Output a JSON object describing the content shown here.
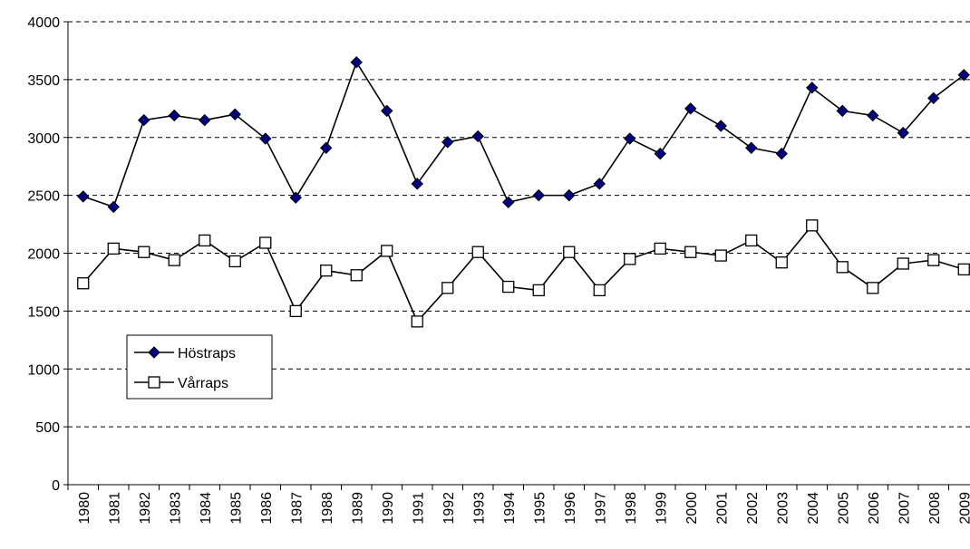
{
  "chart_data": {
    "type": "line",
    "categories": [
      "1980",
      "1981",
      "1982",
      "1983",
      "1984",
      "1985",
      "1986",
      "1987",
      "1988",
      "1989",
      "1990",
      "1991",
      "1992",
      "1993",
      "1994",
      "1995",
      "1996",
      "1997",
      "1998",
      "1999",
      "2000",
      "2001",
      "2002",
      "2003",
      "2004",
      "2005",
      "2006",
      "2007",
      "2008",
      "2009"
    ],
    "series": [
      {
        "name": "Höstraps",
        "color": "#000080",
        "marker": "diamond",
        "values": [
          2490,
          2400,
          3150,
          3190,
          3150,
          3200,
          2990,
          2480,
          2910,
          3650,
          3230,
          2600,
          2960,
          3010,
          2440,
          2500,
          2500,
          2600,
          2990,
          2860,
          3250,
          3100,
          2910,
          2860,
          3430,
          3230,
          3190,
          3040,
          3340,
          3540
        ]
      },
      {
        "name": "Vårraps",
        "color": "#ffffff",
        "marker": "square",
        "values": [
          1740,
          2040,
          2010,
          1940,
          2110,
          1930,
          2090,
          1500,
          1850,
          1810,
          2020,
          1410,
          1700,
          2010,
          1710,
          1680,
          2010,
          1680,
          1950,
          2040,
          2010,
          1980,
          2110,
          1920,
          2240,
          1880,
          1700,
          1910,
          1940,
          1860
        ]
      }
    ],
    "ylim": [
      0,
      4000
    ],
    "yticks": [
      0,
      500,
      1000,
      1500,
      2000,
      2500,
      3000,
      3500,
      4000
    ],
    "grid": true,
    "legend": "left"
  }
}
